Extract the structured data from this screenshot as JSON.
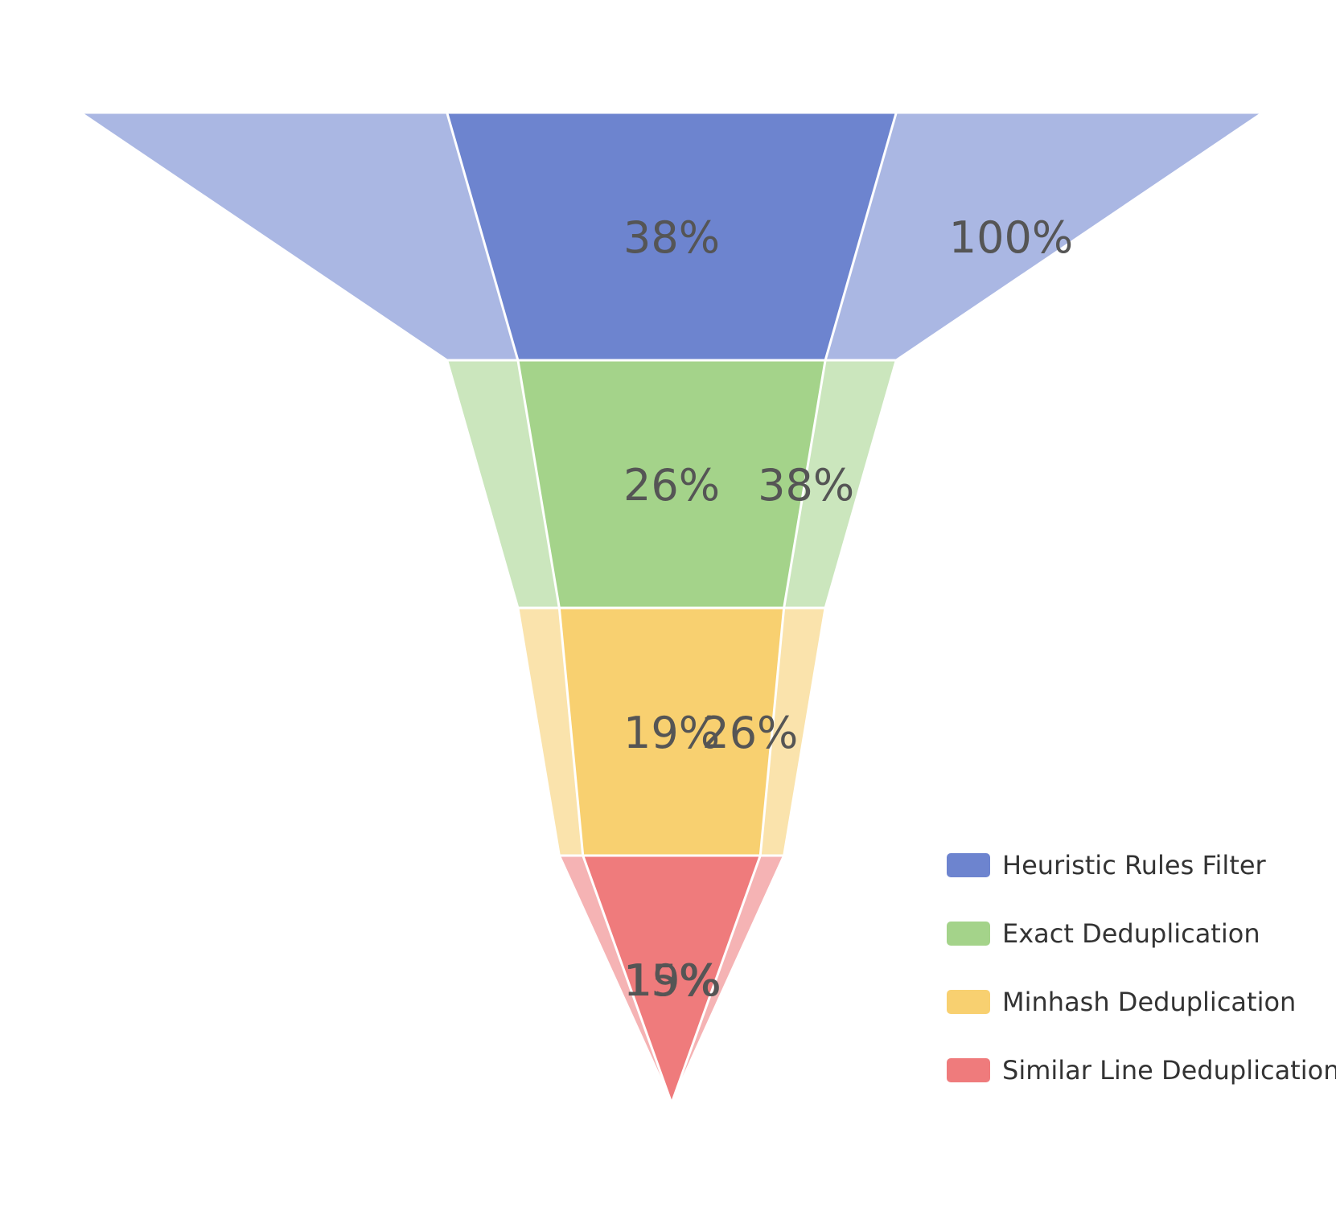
{
  "chart_data": {
    "type": "funnel",
    "stages": [
      {
        "name": "Heuristic Rules Filter",
        "outer": 100,
        "inner": 38,
        "outer_label": "100%",
        "inner_label": "38%",
        "color": "#6d84cf",
        "light": "#aab7e3"
      },
      {
        "name": "Exact Deduplication",
        "outer": 38,
        "inner": 26,
        "outer_label": "38%",
        "inner_label": "26%",
        "color": "#a4d38a",
        "light": "#cbe6bd"
      },
      {
        "name": "Minhash Deduplication",
        "outer": 26,
        "inner": 19,
        "outer_label": "26%",
        "inner_label": "19%",
        "color": "#f8d070",
        "light": "#fae3ac"
      },
      {
        "name": "Similar Line Deduplication",
        "outer": 19,
        "inner": 15,
        "outer_label": "19%",
        "inner_label": "15%",
        "color": "#ef7b7c",
        "light": "#f5b3b4"
      }
    ],
    "legend": [
      "Heuristic Rules Filter",
      "Exact Deduplication",
      "Minhash Deduplication",
      "Similar Line Deduplication"
    ],
    "legend_position": "bottom-right"
  }
}
